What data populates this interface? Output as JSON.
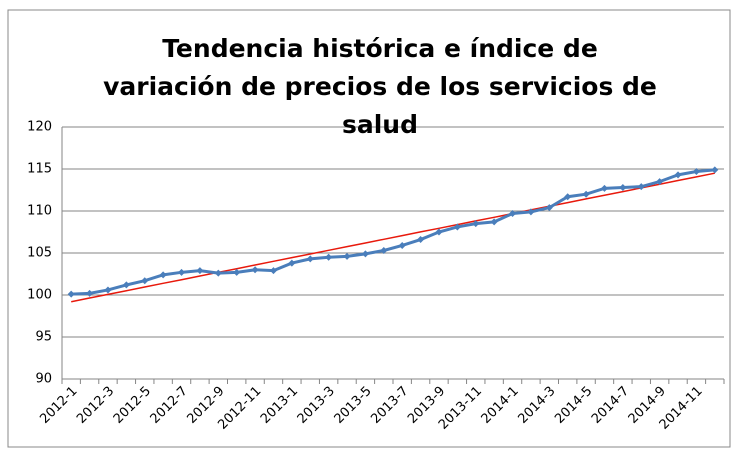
{
  "chart_data": {
    "type": "line",
    "title": "Tendencia histórica e índice de variación de precios de los servicios de salud",
    "categories": [
      "2012-1",
      null,
      "2012-3",
      null,
      "2012-5",
      null,
      "2012-7",
      null,
      "2012-9",
      null,
      "2012-11",
      null,
      "2013-1",
      null,
      "2013-3",
      null,
      "2013-5",
      null,
      "2013-7",
      null,
      "2013-9",
      null,
      "2013-11",
      null,
      "2014-1",
      null,
      "2014-3",
      null,
      "2014-5",
      null,
      "2014-7",
      null,
      "2014-9",
      null,
      "2014-11",
      null
    ],
    "series": [
      {
        "color": "#4a7ebb",
        "marker": "diamond",
        "values": [
          100.1,
          100.2,
          100.6,
          101.2,
          101.7,
          102.4,
          102.7,
          102.9,
          102.6,
          102.7,
          103.0,
          102.9,
          103.8,
          104.3,
          104.5,
          104.6,
          104.9,
          105.3,
          105.9,
          106.6,
          107.5,
          108.1,
          108.5,
          108.7,
          109.7,
          109.9,
          110.4,
          111.7,
          112.0,
          112.7,
          112.8,
          112.9,
          113.5,
          114.3,
          114.7,
          114.9
        ]
      },
      {
        "color": "#e8190c",
        "values": [
          99.2,
          99.64,
          100.07,
          100.51,
          100.95,
          101.39,
          101.82,
          102.26,
          102.7,
          103.13,
          103.57,
          104.01,
          104.45,
          104.88,
          105.32,
          105.76,
          106.19,
          106.63,
          107.07,
          107.51,
          107.94,
          108.38,
          108.82,
          109.25,
          109.69,
          110.13,
          110.57,
          111.0,
          111.44,
          111.88,
          112.31,
          112.75,
          113.19,
          113.63,
          114.06,
          114.5
        ]
      }
    ],
    "ylim": [
      90,
      120
    ],
    "yticks": [
      90,
      95,
      100,
      105,
      110,
      115,
      120
    ],
    "grid": true
  }
}
